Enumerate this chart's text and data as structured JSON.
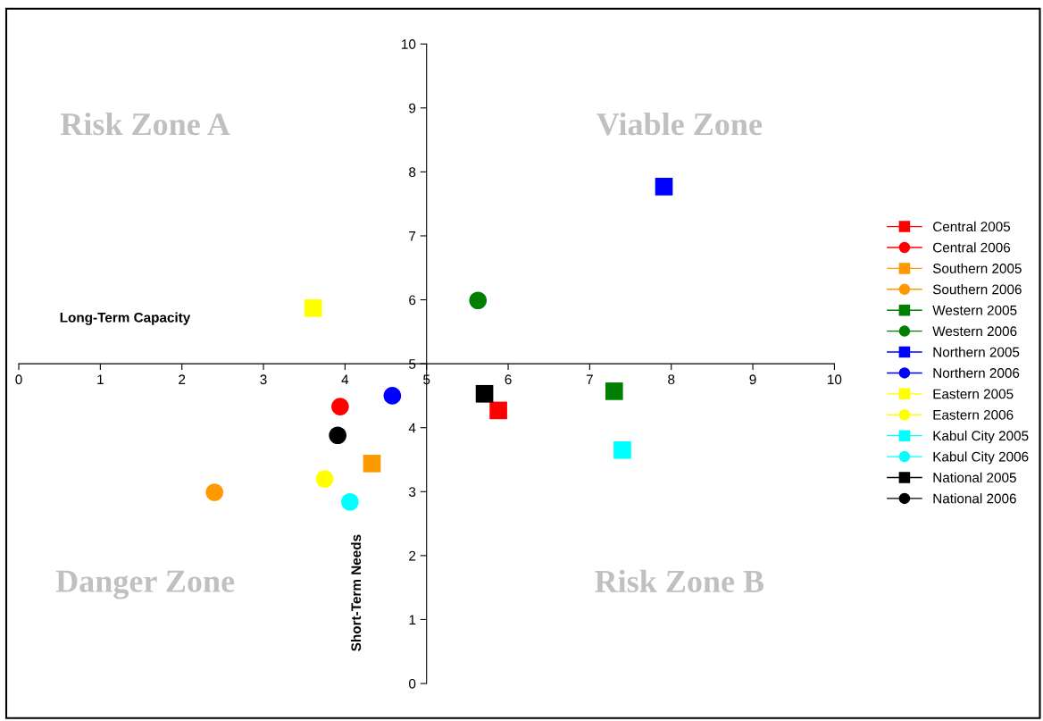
{
  "chart_data": {
    "type": "scatter",
    "xlabel": "Long-Term Capacity",
    "ylabel": "Short-Term Needs",
    "xlim": [
      0,
      10
    ],
    "ylim": [
      0,
      10
    ],
    "xticks": [
      0,
      1,
      2,
      3,
      4,
      5,
      6,
      7,
      8,
      9,
      10
    ],
    "yticks": [
      0,
      1,
      2,
      3,
      4,
      5,
      6,
      7,
      8,
      9,
      10
    ],
    "grid": false,
    "legend": "right",
    "annotations": [
      "Risk Zone A",
      "Viable Zone",
      "Danger Zone",
      "Risk Zone B"
    ],
    "series": [
      {
        "name": "Central 2005",
        "color": "#ff0000",
        "marker": "square",
        "x": [
          5.88
        ],
        "values": [
          4.27
        ]
      },
      {
        "name": "Central 2006",
        "color": "#ff0000",
        "marker": "circle",
        "x": [
          3.94
        ],
        "values": [
          4.33
        ]
      },
      {
        "name": "Southern 2005",
        "color": "#ff9900",
        "marker": "square",
        "x": [
          4.33
        ],
        "values": [
          3.44
        ]
      },
      {
        "name": "Southern 2006",
        "color": "#ff9900",
        "marker": "circle",
        "x": [
          2.4
        ],
        "values": [
          2.99
        ]
      },
      {
        "name": "Western 2005",
        "color": "#008000",
        "marker": "square",
        "x": [
          7.3
        ],
        "values": [
          4.57
        ]
      },
      {
        "name": "Western 2006",
        "color": "#008000",
        "marker": "circle",
        "x": [
          5.63
        ],
        "values": [
          5.99
        ]
      },
      {
        "name": "Northern 2005",
        "color": "#0000ff",
        "marker": "square",
        "x": [
          7.91
        ],
        "values": [
          7.77
        ]
      },
      {
        "name": "Northern 2006",
        "color": "#0000ff",
        "marker": "circle",
        "x": [
          4.58
        ],
        "values": [
          4.5
        ]
      },
      {
        "name": "Eastern 2005",
        "color": "#ffff00",
        "marker": "square",
        "x": [
          3.61
        ],
        "values": [
          5.87
        ]
      },
      {
        "name": "Eastern 2006",
        "color": "#ffff00",
        "marker": "circle",
        "x": [
          3.75
        ],
        "values": [
          3.2
        ]
      },
      {
        "name": "Kabul City 2005",
        "color": "#00ffff",
        "marker": "square",
        "x": [
          7.4
        ],
        "values": [
          3.65
        ]
      },
      {
        "name": "Kabul City 2006",
        "color": "#00ffff",
        "marker": "circle",
        "x": [
          4.06
        ],
        "values": [
          2.84
        ]
      },
      {
        "name": "National 2005",
        "color": "#000000",
        "marker": "square",
        "x": [
          5.71
        ],
        "values": [
          4.53
        ]
      },
      {
        "name": "National 2006",
        "color": "#000000",
        "marker": "circle",
        "x": [
          3.91
        ],
        "values": [
          3.88
        ]
      }
    ]
  }
}
